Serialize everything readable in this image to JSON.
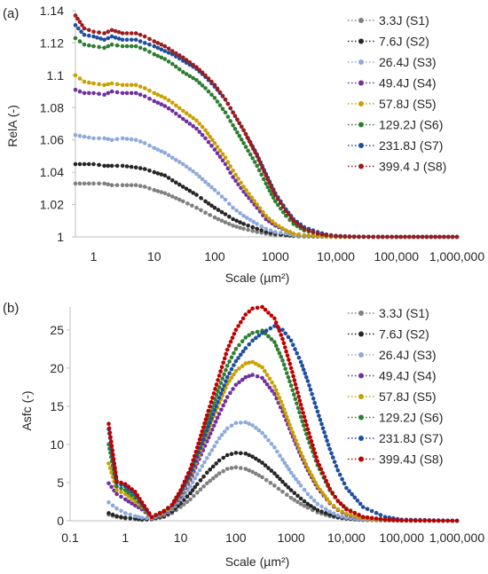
{
  "chart_data": [
    {
      "type": "scatter",
      "panel_label": "(a)",
      "ylabel": "RelA (-)",
      "xlabel": "Scale (µm²)",
      "xscale": "log",
      "xlim": [
        0.5,
        1000000
      ],
      "ylim": [
        1.0,
        1.14
      ],
      "yticks": [
        1,
        1.02,
        1.04,
        1.06,
        1.08,
        1.1,
        1.12,
        1.14
      ],
      "ytick_labels": [
        "1",
        "1.02",
        "1.04",
        "1.06",
        "1.08",
        "1.1",
        "1.12",
        "1.14"
      ],
      "xticks": [
        1,
        10,
        100,
        1000,
        10000,
        100000,
        1000000
      ],
      "xtick_labels": [
        "1",
        "10",
        "100",
        "1000",
        "10,000",
        "100,000",
        "1,000,000"
      ],
      "grid": false,
      "legend_position": "top-right",
      "x": [
        0.5,
        0.7,
        1,
        1.5,
        2,
        3,
        5,
        7,
        10,
        15,
        20,
        30,
        50,
        70,
        100,
        150,
        200,
        300,
        500,
        700,
        1000,
        1500,
        2000,
        3000,
        5000,
        7000,
        10000,
        20000,
        50000,
        100000,
        1000000
      ],
      "series": [
        {
          "name": "3.3J (S1)",
          "color": "#808080",
          "values": [
            1.033,
            1.033,
            1.033,
            1.033,
            1.032,
            1.032,
            1.032,
            1.031,
            1.029,
            1.027,
            1.025,
            1.022,
            1.018,
            1.015,
            1.012,
            1.009,
            1.007,
            1.005,
            1.003,
            1.002,
            1.001,
            1.001,
            1.0005,
            1.0003,
            1.0002,
            1.0001,
            1.0,
            1.0,
            1.0,
            1.0,
            1.0
          ]
        },
        {
          "name": "7.6J (S2)",
          "color": "#262626",
          "values": [
            1.045,
            1.045,
            1.045,
            1.044,
            1.044,
            1.044,
            1.043,
            1.042,
            1.04,
            1.038,
            1.035,
            1.031,
            1.026,
            1.022,
            1.018,
            1.014,
            1.011,
            1.008,
            1.005,
            1.003,
            1.002,
            1.001,
            1.0007,
            1.0004,
            1.0002,
            1.0001,
            1.0,
            1.0,
            1.0,
            1.0,
            1.0
          ]
        },
        {
          "name": "26.4J (S3)",
          "color": "#8eaadb",
          "values": [
            1.063,
            1.062,
            1.061,
            1.061,
            1.06,
            1.061,
            1.06,
            1.058,
            1.055,
            1.052,
            1.049,
            1.045,
            1.039,
            1.034,
            1.029,
            1.023,
            1.018,
            1.013,
            1.008,
            1.005,
            1.003,
            1.002,
            1.001,
            1.0006,
            1.0003,
            1.0001,
            1.0,
            1.0,
            1.0,
            1.0,
            1.0
          ]
        },
        {
          "name": "49.4J (S4)",
          "color": "#7030a0",
          "values": [
            1.091,
            1.089,
            1.089,
            1.088,
            1.09,
            1.089,
            1.089,
            1.087,
            1.084,
            1.081,
            1.078,
            1.073,
            1.067,
            1.061,
            1.054,
            1.045,
            1.037,
            1.028,
            1.018,
            1.011,
            1.007,
            1.004,
            1.002,
            1.001,
            1.0005,
            1.0002,
            1.0001,
            1.0,
            1.0,
            1.0,
            1.0
          ]
        },
        {
          "name": "57.8J (S5)",
          "color": "#c9a000",
          "values": [
            1.1,
            1.096,
            1.095,
            1.094,
            1.095,
            1.094,
            1.094,
            1.092,
            1.089,
            1.086,
            1.083,
            1.078,
            1.072,
            1.066,
            1.058,
            1.049,
            1.041,
            1.031,
            1.02,
            1.013,
            1.008,
            1.004,
            1.002,
            1.001,
            1.0005,
            1.0002,
            1.0001,
            1.0,
            1.0,
            1.0,
            1.0
          ]
        },
        {
          "name": "129.2J (S6)",
          "color": "#2e7d32",
          "values": [
            1.123,
            1.119,
            1.118,
            1.117,
            1.119,
            1.118,
            1.118,
            1.116,
            1.113,
            1.11,
            1.107,
            1.102,
            1.097,
            1.092,
            1.086,
            1.077,
            1.069,
            1.058,
            1.044,
            1.033,
            1.022,
            1.013,
            1.008,
            1.004,
            1.002,
            1.001,
            1.0004,
            1.0001,
            1.0,
            1.0,
            1.0
          ]
        },
        {
          "name": "231.8J (S7)",
          "color": "#1f4e9e",
          "values": [
            1.131,
            1.125,
            1.124,
            1.122,
            1.124,
            1.122,
            1.122,
            1.12,
            1.118,
            1.115,
            1.113,
            1.109,
            1.104,
            1.099,
            1.093,
            1.085,
            1.077,
            1.066,
            1.051,
            1.039,
            1.027,
            1.017,
            1.011,
            1.006,
            1.003,
            1.0015,
            1.0007,
            1.0002,
            1.0,
            1.0,
            1.0
          ]
        },
        {
          "name": "399.4 J (S8)",
          "color": "#9b1c1c",
          "values": [
            1.137,
            1.129,
            1.127,
            1.126,
            1.128,
            1.126,
            1.126,
            1.124,
            1.121,
            1.118,
            1.115,
            1.111,
            1.105,
            1.1,
            1.094,
            1.085,
            1.077,
            1.066,
            1.05,
            1.038,
            1.026,
            1.016,
            1.01,
            1.005,
            1.002,
            1.001,
            1.0005,
            1.0001,
            1.0,
            1.0,
            1.0
          ]
        }
      ]
    },
    {
      "type": "scatter",
      "panel_label": "(b)",
      "ylabel": "Asfc (-)",
      "xlabel": "Scale (µm²)",
      "xscale": "log",
      "xlim": [
        0.1,
        1000000
      ],
      "ylim": [
        0,
        28
      ],
      "yticks": [
        0,
        5,
        10,
        15,
        20,
        25
      ],
      "ytick_labels": [
        "0",
        "5",
        "10",
        "15",
        "20",
        "25"
      ],
      "xticks": [
        0.1,
        1,
        10,
        100,
        1000,
        10000,
        100000,
        1000000
      ],
      "xtick_labels": [
        "0.1",
        "1",
        "10",
        "100",
        "1000",
        "10,000",
        "100,000",
        "1,000,000"
      ],
      "grid": false,
      "legend_position": "top-right",
      "x": [
        0.5,
        0.7,
        1,
        1.5,
        2,
        3,
        5,
        7,
        10,
        15,
        20,
        30,
        50,
        70,
        100,
        150,
        200,
        300,
        500,
        700,
        1000,
        1500,
        2000,
        3000,
        5000,
        7000,
        10000,
        20000,
        50000,
        100000,
        1000000
      ],
      "series": [
        {
          "name": "3.3J (S1)",
          "color": "#808080",
          "values": [
            0.8,
            0.5,
            0.3,
            0.2,
            0.1,
            0.2,
            0.5,
            1.0,
            1.8,
            2.8,
            3.7,
            4.9,
            6.2,
            6.8,
            7.0,
            6.8,
            6.4,
            5.7,
            4.6,
            3.8,
            3.0,
            2.2,
            1.7,
            1.1,
            0.6,
            0.4,
            0.25,
            0.1,
            0.05,
            0.02,
            0.0
          ]
        },
        {
          "name": "7.6J (S2)",
          "color": "#262626",
          "values": [
            1.0,
            0.6,
            0.4,
            0.3,
            0.2,
            0.2,
            0.6,
            1.2,
            2.3,
            3.6,
            4.8,
            6.3,
            7.9,
            8.6,
            8.9,
            8.8,
            8.4,
            7.6,
            6.2,
            5.1,
            4.0,
            2.9,
            2.2,
            1.4,
            0.8,
            0.5,
            0.3,
            0.1,
            0.05,
            0.02,
            0.0
          ]
        },
        {
          "name": "26.4J (S3)",
          "color": "#8eaadb",
          "values": [
            2.4,
            1.6,
            1.0,
            0.6,
            0.4,
            0.3,
            0.8,
            1.5,
            2.8,
            4.5,
            6.1,
            8.2,
            10.8,
            12.1,
            12.8,
            12.9,
            12.5,
            11.5,
            9.6,
            8.0,
            6.3,
            4.6,
            3.5,
            2.2,
            1.2,
            0.7,
            0.4,
            0.15,
            0.05,
            0.02,
            0.0
          ]
        },
        {
          "name": "49.4J (S4)",
          "color": "#7030a0",
          "values": [
            4.9,
            3.5,
            2.8,
            2.0,
            1.5,
            0.4,
            0.9,
            1.7,
            3.2,
            5.4,
            7.5,
            10.4,
            14.0,
            16.2,
            17.8,
            18.8,
            19.1,
            18.7,
            16.6,
            14.3,
            11.5,
            8.5,
            6.6,
            4.3,
            2.3,
            1.4,
            0.8,
            0.3,
            0.1,
            0.03,
            0.0
          ]
        },
        {
          "name": "57.8J (S5)",
          "color": "#c9a000",
          "values": [
            7.5,
            4.0,
            3.5,
            2.5,
            1.8,
            0.4,
            1.0,
            1.8,
            3.4,
            5.8,
            8.1,
            11.4,
            15.4,
            17.9,
            19.6,
            20.6,
            20.8,
            20.1,
            17.6,
            15.1,
            12.1,
            8.9,
            6.9,
            4.5,
            2.4,
            1.5,
            0.9,
            0.3,
            0.1,
            0.03,
            0.0
          ]
        },
        {
          "name": "129.2J (S6)",
          "color": "#2e7d32",
          "values": [
            10.0,
            4.5,
            4.0,
            3.0,
            2.0,
            0.5,
            1.2,
            2.0,
            3.8,
            6.4,
            9.0,
            12.8,
            17.5,
            20.3,
            22.5,
            24.0,
            24.6,
            24.9,
            23.4,
            21.0,
            17.7,
            13.6,
            10.8,
            7.3,
            4.0,
            2.6,
            1.6,
            0.5,
            0.15,
            0.05,
            0.0
          ]
        },
        {
          "name": "231.8J (S7)",
          "color": "#1f4e9e",
          "values": [
            12.0,
            5.0,
            4.5,
            3.5,
            2.2,
            0.5,
            1.2,
            2.0,
            3.7,
            6.1,
            8.4,
            11.8,
            16.1,
            18.8,
            20.9,
            22.6,
            23.6,
            24.6,
            25.5,
            25.0,
            23.6,
            20.8,
            18.3,
            14.3,
            9.4,
            6.6,
            4.3,
            1.8,
            0.5,
            0.15,
            0.0
          ]
        },
        {
          "name": "399.4J (S8)",
          "color": "#c00000",
          "values": [
            12.7,
            5.2,
            4.8,
            3.8,
            2.4,
            0.5,
            1.3,
            2.1,
            4.0,
            6.8,
            9.6,
            13.8,
            19.0,
            22.4,
            25.0,
            27.0,
            27.8,
            28.0,
            26.5,
            23.8,
            20.0,
            15.2,
            12.0,
            7.8,
            4.2,
            2.6,
            1.5,
            0.5,
            0.15,
            0.05,
            0.0
          ]
        }
      ]
    }
  ]
}
